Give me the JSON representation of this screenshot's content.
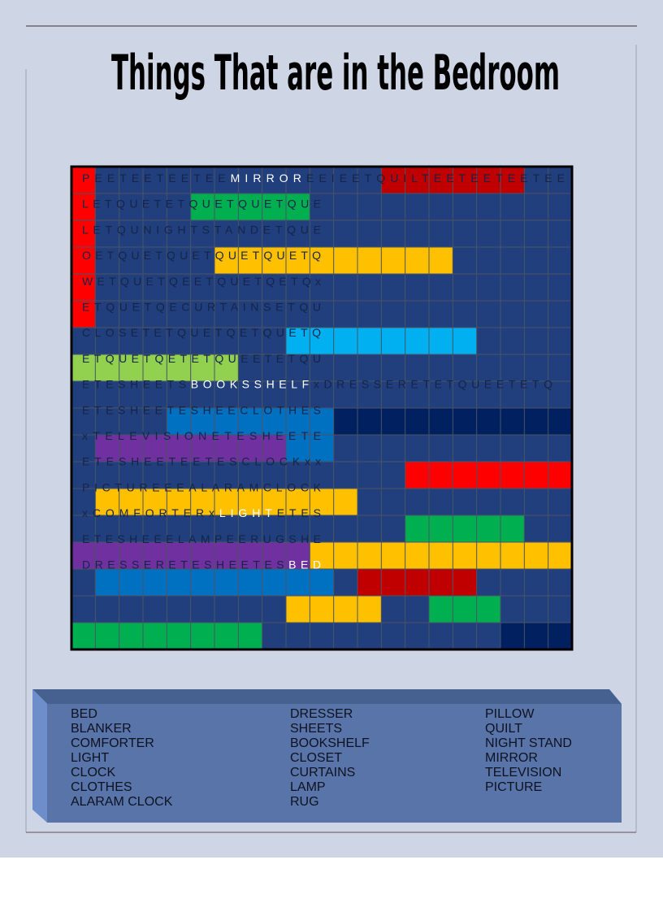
{
  "title": "Things That are in the Bedroom",
  "puzzle": {
    "rows": [
      {
        "parts": [
          "PEETEETEETEE",
          "MIRROR",
          "EEIEETQUILTEETEETEETEE"
        ],
        "colors": [
          "#15244a",
          "#ffffff",
          "#15244a"
        ]
      },
      {
        "parts": [
          "LETQUETETQUETQUETQUE"
        ],
        "colors": [
          "#15244a"
        ]
      },
      {
        "parts": [
          "LETQUNIGHTSTANDETQUE"
        ],
        "colors": [
          "#15244a"
        ]
      },
      {
        "parts": [
          "OETQUETQUETQUETQUETQ"
        ],
        "colors": [
          "#15244a"
        ]
      },
      {
        "parts": [
          "WETQUETQEETQUETQETQx"
        ],
        "colors": [
          "#15244a"
        ]
      },
      {
        "parts": [
          "ETQUETQECURTAINSETQU"
        ],
        "colors": [
          "#15244a"
        ]
      },
      {
        "parts": [
          "CLOSETETQUETQETQUETQ"
        ],
        "colors": [
          "#15244a"
        ]
      },
      {
        "parts": [
          "ETQUETQETETQUEETETQU"
        ],
        "colors": [
          "#15244a"
        ]
      },
      {
        "parts": [
          "ETESHEETS",
          "BOOKSSHELF",
          "xDRESSERETETQUEETETQ"
        ],
        "colors": [
          "#15244a",
          "#ffffff",
          "#15244a"
        ]
      },
      {
        "parts": [
          "ETESHEETESHEECLOTHES"
        ],
        "colors": [
          "#15244a"
        ]
      },
      {
        "parts": [
          "xTELEVISIONETESHEETE"
        ],
        "colors": [
          "#15244a"
        ]
      },
      {
        "parts": [
          "ETESHEETEETESCLOCKxx"
        ],
        "colors": [
          "#15244a"
        ]
      },
      {
        "parts": [
          "PICTUREEEALARAMCLOCK"
        ],
        "colors": [
          "#15244a"
        ]
      },
      {
        "parts": [
          "xCOMFORTERx",
          "LIGHT",
          "ETES"
        ],
        "colors": [
          "#15244a",
          "#ffffff",
          "#15244a"
        ]
      },
      {
        "parts": [
          "ETESHEEELAMPEERUGSHE"
        ],
        "colors": [
          "#15244a"
        ]
      },
      {
        "parts": [
          "DRESSERETESHEETES",
          "BED"
        ],
        "colors": [
          "#15244a",
          "#ffffff"
        ]
      }
    ]
  },
  "word_list": {
    "columns": [
      [
        "BED",
        "BLANKER",
        "COMFORTER",
        "LIGHT",
        "CLOCK",
        "CLOTHES",
        "ALARAM CLOCK"
      ],
      [
        "DRESSER",
        "SHEETS",
        "BOOKSHELF",
        "CLOSET",
        "CURTAINS",
        "LAMP",
        "RUG"
      ],
      [
        "PILLOW",
        "QUILT",
        "NIGHT STAND",
        "MIRROR",
        "TELEVISION",
        "PICTURE"
      ]
    ]
  }
}
